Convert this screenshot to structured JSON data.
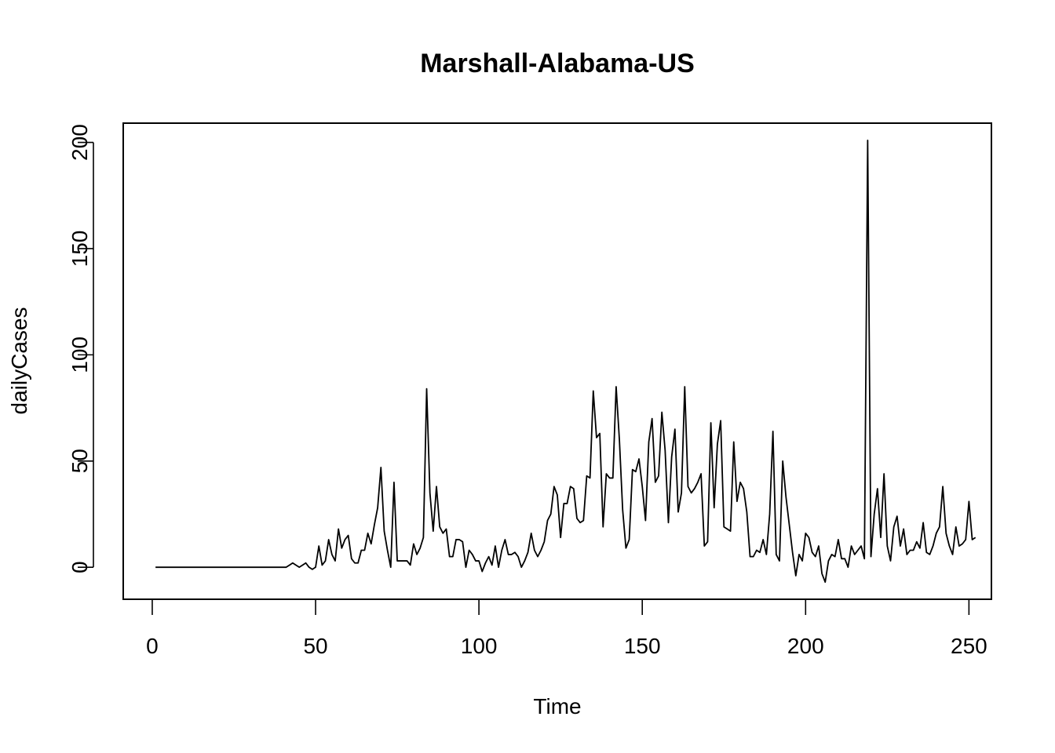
{
  "chart_data": {
    "type": "line",
    "title": "Marshall-Alabama-US",
    "xlabel": "Time",
    "ylabel": "dailyCases",
    "xlim": [
      -8.88,
      256.88
    ],
    "ylim": [
      -15.08,
      209.08
    ],
    "xticks": [
      0,
      50,
      100,
      150,
      200,
      250
    ],
    "yticks": [
      0,
      50,
      100,
      150,
      200
    ],
    "grid": false,
    "legend": "none",
    "colors": {
      "line": "#000000",
      "frame": "#000000"
    },
    "series": [
      {
        "values": [
          0,
          0,
          0,
          0,
          0,
          0,
          0,
          0,
          0,
          0,
          0,
          0,
          0,
          0,
          0,
          0,
          0,
          0,
          0,
          0,
          0,
          0,
          0,
          0,
          0,
          0,
          0,
          0,
          0,
          0,
          0,
          0,
          0,
          0,
          0,
          0,
          0,
          0,
          0,
          0,
          0,
          1,
          2,
          1,
          0,
          1,
          2,
          0,
          -1,
          0,
          10,
          1,
          3,
          13,
          6,
          3,
          18,
          9,
          13,
          15,
          4,
          2,
          2,
          8,
          8,
          16,
          11,
          20,
          28,
          47,
          17,
          8,
          0,
          40,
          3,
          3,
          3,
          3,
          1,
          11,
          6,
          9,
          14,
          84,
          35,
          17,
          38,
          19,
          16,
          18,
          5,
          5,
          13,
          13,
          12,
          0,
          8,
          6,
          3,
          3,
          -2,
          2,
          5,
          1,
          10,
          0,
          8,
          13,
          6,
          6,
          7,
          5,
          0,
          3,
          7,
          16,
          8,
          5,
          8,
          12,
          22,
          25,
          38,
          34,
          14,
          30,
          30,
          38,
          37,
          23,
          21,
          22,
          43,
          42,
          83,
          61,
          63,
          19,
          44,
          42,
          42,
          85,
          60,
          27,
          9,
          13,
          46,
          45,
          51,
          38,
          22,
          59,
          70,
          40,
          43,
          73,
          55,
          21,
          52,
          65,
          26,
          35,
          85,
          38,
          35,
          37,
          40,
          44,
          10,
          12,
          68,
          28,
          58,
          69,
          19,
          18,
          17,
          59,
          31,
          40,
          37,
          26,
          5,
          5,
          8,
          7,
          13,
          6,
          25,
          64,
          6,
          3,
          50,
          33,
          20,
          7,
          -4,
          6,
          3,
          16,
          14,
          7,
          5,
          10,
          -3,
          -7,
          3,
          6,
          5,
          13,
          4,
          4,
          0,
          10,
          6,
          8,
          10,
          4,
          201,
          5,
          25,
          37,
          14,
          44,
          10,
          3,
          19,
          24,
          10,
          18,
          6,
          8,
          8,
          12,
          9,
          21,
          7,
          6,
          10,
          16,
          19,
          38,
          16,
          10,
          6,
          19,
          10,
          11,
          13,
          31,
          13,
          14
        ]
      }
    ]
  }
}
